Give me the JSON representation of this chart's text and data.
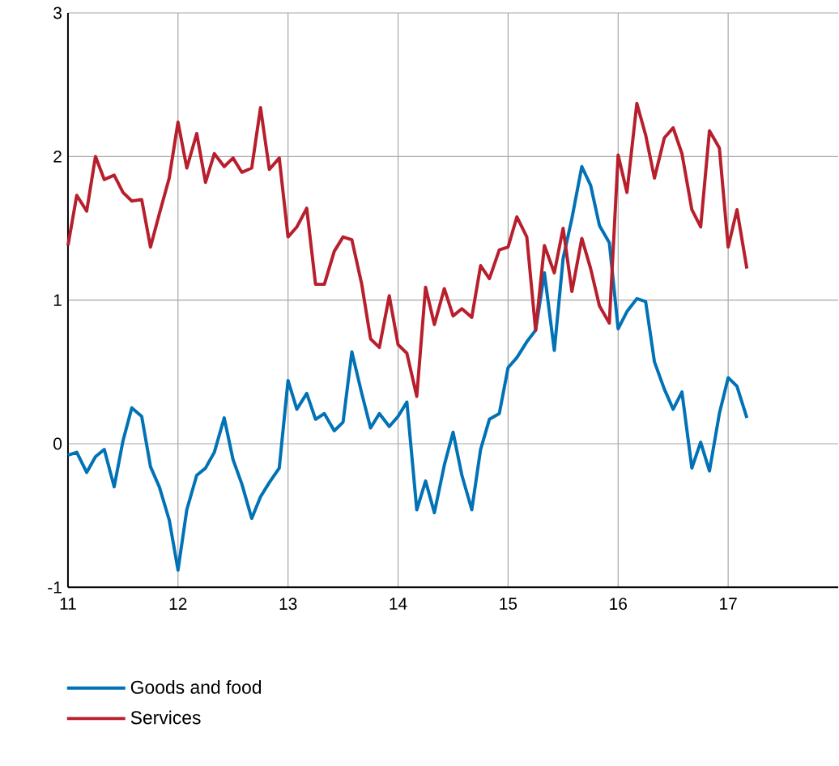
{
  "chart_data": {
    "type": "line",
    "x": [
      11.0,
      11.08,
      11.17,
      11.25,
      11.33,
      11.42,
      11.5,
      11.58,
      11.67,
      11.75,
      11.83,
      11.92,
      12.0,
      12.08,
      12.17,
      12.25,
      12.33,
      12.42,
      12.5,
      12.58,
      12.67,
      12.75,
      12.83,
      12.92,
      13.0,
      13.08,
      13.17,
      13.25,
      13.33,
      13.42,
      13.5,
      13.58,
      13.67,
      13.75,
      13.83,
      13.92,
      14.0,
      14.08,
      14.17,
      14.25,
      14.33,
      14.42,
      14.5,
      14.58,
      14.67,
      14.75,
      14.83,
      14.92,
      15.0,
      15.08,
      15.17,
      15.25,
      15.33,
      15.42,
      15.5,
      15.58,
      15.67,
      15.75,
      15.83,
      15.92,
      16.0,
      16.08,
      16.17,
      16.25,
      16.33,
      16.42,
      16.5,
      16.58,
      16.67,
      16.75,
      16.83,
      16.92,
      17.0,
      17.08,
      17.17
    ],
    "series": [
      {
        "name": "Goods and food",
        "color": "#0072b5",
        "values": [
          -0.08,
          -0.06,
          -0.2,
          -0.09,
          -0.04,
          -0.3,
          0.02,
          0.25,
          0.19,
          -0.16,
          -0.3,
          -0.53,
          -0.88,
          -0.46,
          -0.22,
          -0.17,
          -0.06,
          0.18,
          -0.11,
          -0.28,
          -0.52,
          -0.37,
          -0.27,
          -0.17,
          0.44,
          0.24,
          0.35,
          0.17,
          0.21,
          0.09,
          0.15,
          0.64,
          0.35,
          0.11,
          0.21,
          0.12,
          0.19,
          0.29,
          -0.46,
          -0.26,
          -0.48,
          -0.15,
          0.08,
          -0.22,
          -0.46,
          -0.04,
          0.17,
          0.21,
          0.53,
          0.6,
          0.71,
          0.79,
          1.19,
          0.65,
          1.29,
          1.57,
          1.93,
          1.8,
          1.52,
          1.4,
          0.8,
          0.92,
          1.01,
          0.99,
          0.57,
          0.38,
          0.24,
          0.36,
          -0.17,
          0.01,
          -0.19,
          0.21,
          0.46,
          0.4,
          0.18
        ]
      },
      {
        "name": "Services",
        "color": "#b81f2d",
        "values": [
          1.38,
          1.73,
          1.62,
          2.0,
          1.84,
          1.87,
          1.75,
          1.69,
          1.7,
          1.37,
          1.6,
          1.85,
          2.24,
          1.92,
          2.16,
          1.82,
          2.02,
          1.93,
          1.99,
          1.89,
          1.92,
          2.34,
          1.91,
          1.99,
          1.44,
          1.51,
          1.64,
          1.11,
          1.11,
          1.34,
          1.44,
          1.42,
          1.11,
          0.73,
          0.67,
          1.03,
          0.69,
          0.63,
          0.33,
          1.09,
          0.83,
          1.08,
          0.89,
          0.94,
          0.88,
          1.24,
          1.15,
          1.35,
          1.37,
          1.58,
          1.44,
          0.79,
          1.38,
          1.19,
          1.5,
          1.06,
          1.43,
          1.22,
          0.96,
          0.84,
          2.01,
          1.75,
          2.37,
          2.15,
          1.85,
          2.13,
          2.2,
          2.02,
          1.63,
          1.51,
          2.18,
          2.06,
          1.37,
          1.63,
          1.22
        ]
      }
    ],
    "xlim": [
      11,
      18
    ],
    "ylim": [
      -1,
      3
    ],
    "xticks": [
      11,
      12,
      13,
      14,
      15,
      16,
      17
    ],
    "yticks": [
      -1,
      0,
      1,
      2,
      3
    ],
    "grid": true,
    "legend": "bottom",
    "marker": "none"
  }
}
